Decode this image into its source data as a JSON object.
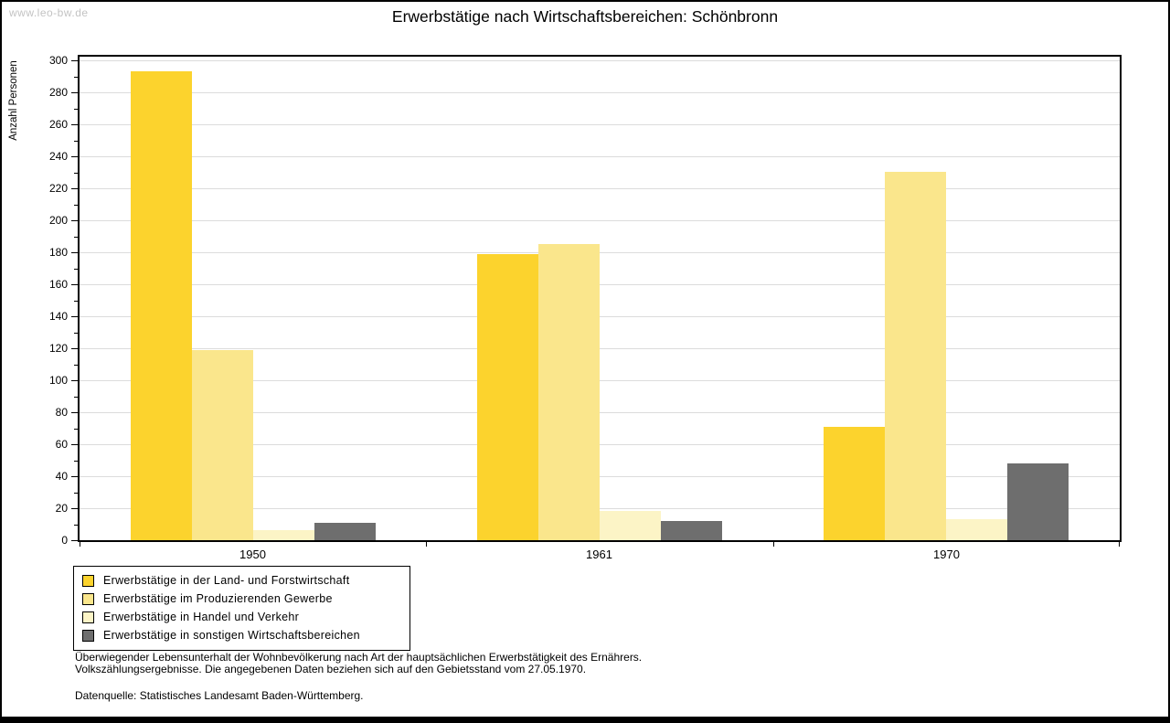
{
  "watermark": "www.leo-bw.de",
  "title": "Erwerbstätige nach Wirtschaftsbereichen: Schönbronn",
  "chart_data": {
    "type": "bar",
    "title": "Erwerbstätige nach Wirtschaftsbereichen: Schönbronn",
    "categories": [
      "1950",
      "1961",
      "1970"
    ],
    "series": [
      {
        "name": "Erwerbstätige in der Land- und Forstwirtschaft",
        "color": "#FCD32D",
        "values": [
          293,
          179,
          71
        ]
      },
      {
        "name": "Erwerbstätige im Produzierenden Gewerbe",
        "color": "#FAE68C",
        "values": [
          119,
          185,
          230
        ]
      },
      {
        "name": "Erwerbstätige in Handel und Verkehr",
        "color": "#FCF4C6",
        "values": [
          6,
          18,
          13
        ]
      },
      {
        "name": "Erwerbstätige in sonstigen Wirtschaftsbereichen",
        "color": "#6E6E6E",
        "values": [
          11,
          12,
          48
        ]
      }
    ],
    "xlabel": "",
    "ylabel": "Anzahl Personen",
    "ylim": [
      0,
      300
    ],
    "ytick_step": 20,
    "ytick_minor_step": 10,
    "grid": true,
    "legend_position": "bottom-left"
  },
  "footer": {
    "line1": "Überwiegender Lebensunterhalt der Wohnbevölkerung nach Art der hauptsächlichen Erwerbstätigkeit des Ernährers.",
    "line2": "Volkszählungsergebnisse. Die angegebenen Daten beziehen sich auf den Gebietsstand vom 27.05.1970.",
    "source": "Datenquelle: Statistisches Landesamt Baden-Württemberg."
  },
  "colors": {
    "background": "#FFFFFF",
    "axis": "#000000",
    "grid": "#DCDCDC",
    "watermark": "#C3C3C3"
  }
}
